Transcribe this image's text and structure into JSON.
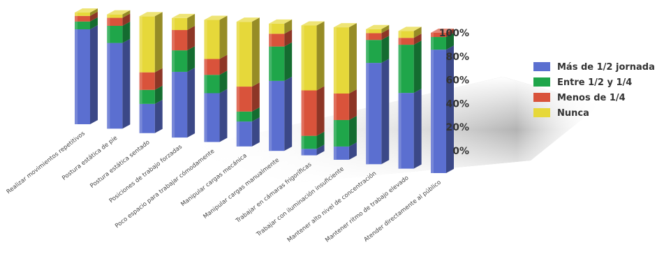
{
  "chart_data": {
    "type": "bar",
    "stacked": true,
    "three_d": true,
    "title": "",
    "xlabel": "",
    "ylabel": "",
    "ylim": [
      0,
      100
    ],
    "yticks": [
      "0%",
      "20%",
      "40%",
      "60%",
      "80%",
      "100%"
    ],
    "grid": false,
    "legend_position": "right",
    "categories": [
      "Realizar movimientos repetitivos",
      "Postura estática de pie",
      "Postura estática sentado",
      "Posiciones de trabajo forzadas",
      "Poco espacio para trabajar cómodamente",
      "Manipular cargas mecánica",
      "Manipular cargas manualmente",
      "Trabajar en cámaras frigoríficas",
      "Trabajar con iluminación insuficiente",
      "Mantener alto nivel de concentración",
      "Mantener ritmo de trabajo elevado",
      "Atender directamente al público"
    ],
    "series": [
      {
        "name": "Más de 1/2 jornada",
        "color": "#5b6fd0",
        "values": [
          85,
          75,
          25,
          55,
          40,
          20,
          55,
          5,
          10,
          75,
          55,
          88
        ]
      },
      {
        "name": "Entre 1/2 y 1/4",
        "color": "#1fa64a",
        "values": [
          7,
          15,
          12,
          18,
          15,
          8,
          27,
          10,
          20,
          17,
          35,
          9
        ]
      },
      {
        "name": "Menos de 1/4",
        "color": "#d9533b",
        "values": [
          5,
          7,
          15,
          17,
          13,
          20,
          10,
          35,
          20,
          5,
          5,
          3
        ]
      },
      {
        "name": "Nunca",
        "color": "#e6d83a",
        "values": [
          3,
          3,
          48,
          10,
          32,
          52,
          8,
          50,
          50,
          3,
          5,
          0
        ]
      }
    ]
  }
}
